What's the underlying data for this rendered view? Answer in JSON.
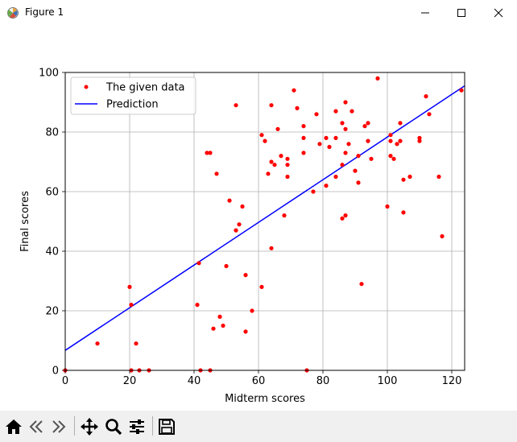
{
  "window": {
    "title": "Figure 1",
    "controls": [
      "minimize-icon",
      "maximize-icon",
      "close-icon"
    ]
  },
  "toolbar": {
    "buttons": [
      "home-icon",
      "back-icon",
      "forward-icon",
      "pan-icon",
      "zoom-icon",
      "configure-subplots-icon",
      "save-icon"
    ]
  },
  "chart_data": {
    "type": "scatter",
    "xlabel": "Midterm scores",
    "ylabel": "Final scores",
    "xlim": [
      0,
      124
    ],
    "ylim": [
      0,
      100
    ],
    "xticks": [
      "0",
      "20",
      "40",
      "60",
      "80",
      "100",
      "120"
    ],
    "yticks": [
      "0",
      "20",
      "40",
      "60",
      "80",
      "100"
    ],
    "grid": true,
    "legend_placement": "top-left",
    "series": [
      {
        "name": "The given data",
        "kind": "scatter",
        "color": "#ff0000",
        "points": [
          [
            0,
            0
          ],
          [
            10,
            9
          ],
          [
            20,
            28
          ],
          [
            20.5,
            22
          ],
          [
            20.5,
            0
          ],
          [
            22,
            9
          ],
          [
            23,
            0
          ],
          [
            26,
            0
          ],
          [
            41,
            22
          ],
          [
            41.5,
            36
          ],
          [
            42,
            0
          ],
          [
            44,
            73
          ],
          [
            45,
            73
          ],
          [
            45,
            0
          ],
          [
            46,
            14
          ],
          [
            47,
            66
          ],
          [
            48,
            18
          ],
          [
            49,
            15
          ],
          [
            50,
            35
          ],
          [
            51,
            57
          ],
          [
            53,
            89
          ],
          [
            53,
            47
          ],
          [
            54,
            49
          ],
          [
            55,
            55
          ],
          [
            56,
            32
          ],
          [
            56,
            13
          ],
          [
            58,
            20
          ],
          [
            61,
            79
          ],
          [
            61,
            28
          ],
          [
            62,
            77
          ],
          [
            63,
            66
          ],
          [
            64,
            89
          ],
          [
            64,
            70
          ],
          [
            64,
            41
          ],
          [
            65,
            69
          ],
          [
            66,
            81
          ],
          [
            67,
            72
          ],
          [
            68,
            52
          ],
          [
            69,
            71
          ],
          [
            69,
            69
          ],
          [
            69,
            65
          ],
          [
            71,
            94
          ],
          [
            72,
            88
          ],
          [
            74,
            82
          ],
          [
            74,
            78
          ],
          [
            74,
            73
          ],
          [
            75,
            0
          ],
          [
            77,
            60
          ],
          [
            78,
            86
          ],
          [
            79,
            76
          ],
          [
            81,
            78
          ],
          [
            81,
            62
          ],
          [
            82,
            75
          ],
          [
            84,
            87
          ],
          [
            84,
            78
          ],
          [
            84,
            65
          ],
          [
            86,
            83
          ],
          [
            86,
            69
          ],
          [
            86,
            51
          ],
          [
            87,
            90
          ],
          [
            87,
            81
          ],
          [
            87,
            73
          ],
          [
            87,
            52
          ],
          [
            88,
            76
          ],
          [
            89,
            87
          ],
          [
            90,
            67
          ],
          [
            91,
            72
          ],
          [
            91,
            63
          ],
          [
            92,
            29
          ],
          [
            93,
            82
          ],
          [
            94,
            83
          ],
          [
            94,
            77
          ],
          [
            95,
            71
          ],
          [
            97,
            98
          ],
          [
            100,
            55
          ],
          [
            101,
            79
          ],
          [
            101,
            77
          ],
          [
            101,
            72
          ],
          [
            102,
            71
          ],
          [
            103,
            76
          ],
          [
            104,
            83
          ],
          [
            104,
            77
          ],
          [
            105,
            64
          ],
          [
            105,
            53
          ],
          [
            107,
            65
          ],
          [
            110,
            78
          ],
          [
            110,
            77
          ],
          [
            112,
            92
          ],
          [
            113,
            86
          ],
          [
            116,
            65
          ],
          [
            117,
            45
          ],
          [
            123,
            94
          ]
        ]
      },
      {
        "name": "Prediction",
        "kind": "line",
        "color": "#0000ff",
        "x": [
          0,
          124
        ],
        "y": [
          6.7,
          95.5
        ]
      }
    ]
  }
}
